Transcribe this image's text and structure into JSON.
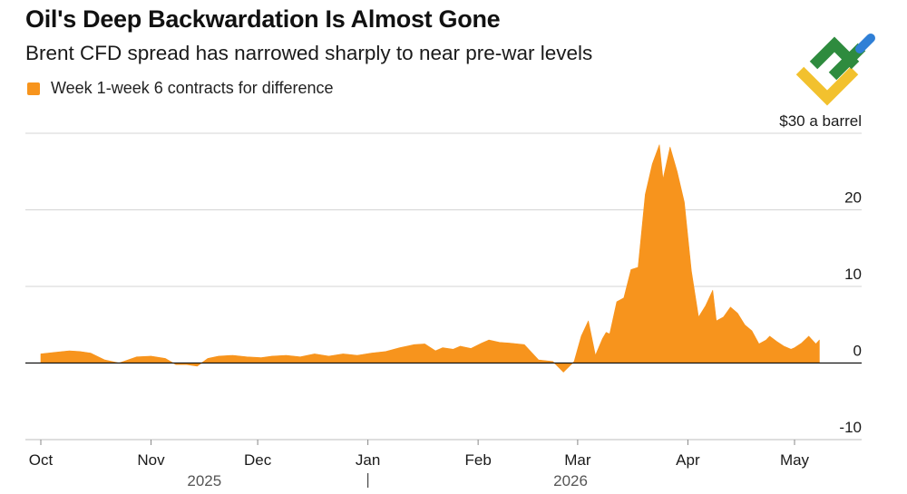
{
  "header": {
    "title": "Oil's Deep Backwardation Is Almost Gone",
    "subtitle": "Brent CFD spread has narrowed sharply to near pre-war levels"
  },
  "legend": {
    "label": "Week 1-week 6 contracts for difference",
    "color": "#f7941d"
  },
  "logo": {
    "icon": "brand-logo-icon",
    "colors": [
      "#2e8b3e",
      "#2f7fd6",
      "#f2c12e"
    ]
  },
  "chart_data": {
    "type": "area",
    "title": "Oil's Deep Backwardation Is Almost Gone",
    "subtitle": "Brent CFD spread has narrowed sharply to near pre-war levels",
    "series": [
      {
        "name": "Week 1-week 6 contracts for difference",
        "color": "#f7941d",
        "x": [
          "2025-10-01",
          "2025-10-05",
          "2025-10-09",
          "2025-10-12",
          "2025-10-15",
          "2025-10-19",
          "2025-10-23",
          "2025-10-28",
          "2025-11-01",
          "2025-11-05",
          "2025-11-08",
          "2025-11-11",
          "2025-11-14",
          "2025-11-17",
          "2025-11-20",
          "2025-11-24",
          "2025-11-28",
          "2025-12-02",
          "2025-12-05",
          "2025-12-09",
          "2025-12-13",
          "2025-12-17",
          "2025-12-21",
          "2025-12-25",
          "2025-12-29",
          "2026-01-02",
          "2026-01-06",
          "2026-01-10",
          "2026-01-14",
          "2026-01-17",
          "2026-01-20",
          "2026-01-22",
          "2026-01-25",
          "2026-01-27",
          "2026-01-30",
          "2026-02-02",
          "2026-02-04",
          "2026-02-07",
          "2026-02-10",
          "2026-02-14",
          "2026-02-18",
          "2026-02-22",
          "2026-02-25",
          "2026-02-28",
          "2026-03-02",
          "2026-03-04",
          "2026-03-06",
          "2026-03-08",
          "2026-03-09",
          "2026-03-10",
          "2026-03-12",
          "2026-03-14",
          "2026-03-16",
          "2026-03-18",
          "2026-03-20",
          "2026-03-22",
          "2026-03-24",
          "2026-03-25",
          "2026-03-27",
          "2026-03-29",
          "2026-03-31",
          "2026-04-02",
          "2026-04-04",
          "2026-04-06",
          "2026-04-08",
          "2026-04-09",
          "2026-04-11",
          "2026-04-13",
          "2026-04-15",
          "2026-04-17",
          "2026-04-19",
          "2026-04-21",
          "2026-04-23",
          "2026-04-24",
          "2026-04-26",
          "2026-04-28",
          "2026-04-30",
          "2026-05-01",
          "2026-05-03",
          "2026-05-05",
          "2026-05-07",
          "2026-05-08"
        ],
        "values": [
          1.2,
          1.4,
          1.6,
          1.5,
          1.3,
          0.4,
          0.0,
          0.8,
          0.9,
          0.6,
          -0.2,
          -0.2,
          -0.4,
          0.6,
          0.9,
          1.0,
          0.8,
          0.7,
          0.9,
          1.0,
          0.8,
          1.2,
          0.9,
          1.2,
          1.0,
          1.3,
          1.5,
          2.0,
          2.4,
          2.5,
          1.6,
          2.0,
          1.8,
          2.2,
          1.9,
          2.6,
          3.0,
          2.7,
          2.6,
          2.4,
          0.4,
          0.2,
          -1.2,
          0.2,
          3.5,
          5.5,
          1.0,
          3.2,
          4.0,
          3.8,
          8.0,
          8.5,
          12.2,
          12.5,
          22.0,
          26.0,
          28.5,
          24.0,
          28.2,
          25.0,
          21.0,
          12.0,
          6.0,
          7.5,
          9.5,
          5.5,
          6.0,
          7.3,
          6.5,
          5.0,
          4.2,
          2.5,
          3.0,
          3.5,
          2.8,
          2.2,
          1.8,
          2.0,
          2.6,
          3.5,
          2.5,
          3.0
        ]
      }
    ],
    "yticks": [
      {
        "value": 30,
        "label": "$30 a barrel"
      },
      {
        "value": 20,
        "label": "20"
      },
      {
        "value": 10,
        "label": "10"
      },
      {
        "value": 0,
        "label": "0"
      },
      {
        "value": -10,
        "label": "-10"
      }
    ],
    "ylim": [
      -10,
      30
    ],
    "xlim": [
      "2025-09-28",
      "2026-05-15"
    ],
    "xticks": [
      {
        "date": "2025-10-01",
        "label": "Oct"
      },
      {
        "date": "2025-11-01",
        "label": "Nov"
      },
      {
        "date": "2025-12-01",
        "label": "Dec"
      },
      {
        "date": "2026-01-01",
        "label": "Jan"
      },
      {
        "date": "2026-02-01",
        "label": "Feb"
      },
      {
        "date": "2026-03-01",
        "label": "Mar"
      },
      {
        "date": "2026-04-01",
        "label": "Apr"
      },
      {
        "date": "2026-05-01",
        "label": "May"
      }
    ],
    "year_labels": [
      {
        "date": "2025-11-16",
        "label": "2025"
      },
      {
        "date": "2026-02-27",
        "label": "2026"
      }
    ],
    "year_divider": "2026-01-01",
    "grid": true,
    "legend_position": "top-left"
  }
}
